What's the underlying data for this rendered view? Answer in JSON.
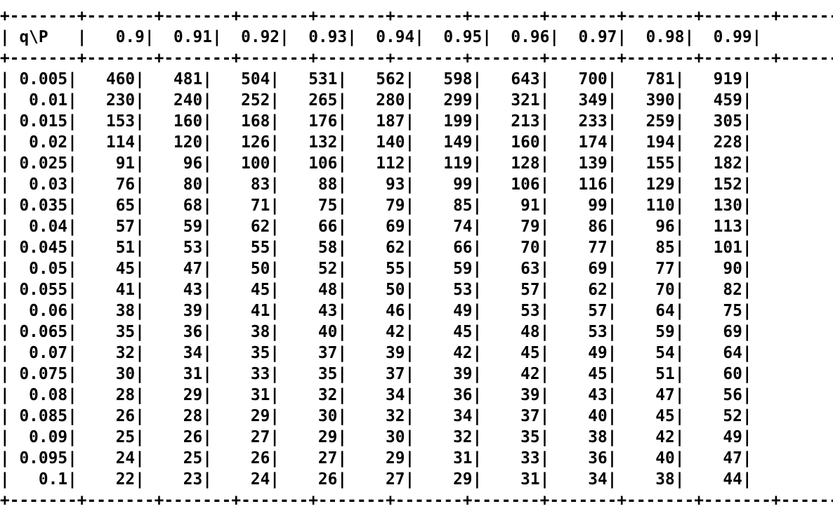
{
  "table": {
    "corner_label": "q\\P",
    "columns": [
      "0.9",
      "0.91",
      "0.92",
      "0.93",
      "0.94",
      "0.95",
      "0.96",
      "0.97",
      "0.98",
      "0.99"
    ],
    "rows": [
      {
        "q": "0.005",
        "values": [
          "460",
          "481",
          "504",
          "531",
          "562",
          "598",
          "643",
          "700",
          "781",
          "919"
        ]
      },
      {
        "q": "0.01",
        "values": [
          "230",
          "240",
          "252",
          "265",
          "280",
          "299",
          "321",
          "349",
          "390",
          "459"
        ]
      },
      {
        "q": "0.015",
        "values": [
          "153",
          "160",
          "168",
          "176",
          "187",
          "199",
          "213",
          "233",
          "259",
          "305"
        ]
      },
      {
        "q": "0.02",
        "values": [
          "114",
          "120",
          "126",
          "132",
          "140",
          "149",
          "160",
          "174",
          "194",
          "228"
        ]
      },
      {
        "q": "0.025",
        "values": [
          "91",
          "96",
          "100",
          "106",
          "112",
          "119",
          "128",
          "139",
          "155",
          "182"
        ]
      },
      {
        "q": "0.03",
        "values": [
          "76",
          "80",
          "83",
          "88",
          "93",
          "99",
          "106",
          "116",
          "129",
          "152"
        ]
      },
      {
        "q": "0.035",
        "values": [
          "65",
          "68",
          "71",
          "75",
          "79",
          "85",
          "91",
          "99",
          "110",
          "130"
        ]
      },
      {
        "q": "0.04",
        "values": [
          "57",
          "59",
          "62",
          "66",
          "69",
          "74",
          "79",
          "86",
          "96",
          "113"
        ]
      },
      {
        "q": "0.045",
        "values": [
          "51",
          "53",
          "55",
          "58",
          "62",
          "66",
          "70",
          "77",
          "85",
          "101"
        ]
      },
      {
        "q": "0.05",
        "values": [
          "45",
          "47",
          "50",
          "52",
          "55",
          "59",
          "63",
          "69",
          "77",
          "90"
        ]
      },
      {
        "q": "0.055",
        "values": [
          "41",
          "43",
          "45",
          "48",
          "50",
          "53",
          "57",
          "62",
          "70",
          "82"
        ]
      },
      {
        "q": "0.06",
        "values": [
          "38",
          "39",
          "41",
          "43",
          "46",
          "49",
          "53",
          "57",
          "64",
          "75"
        ]
      },
      {
        "q": "0.065",
        "values": [
          "35",
          "36",
          "38",
          "40",
          "42",
          "45",
          "48",
          "53",
          "59",
          "69"
        ]
      },
      {
        "q": "0.07",
        "values": [
          "32",
          "34",
          "35",
          "37",
          "39",
          "42",
          "45",
          "49",
          "54",
          "64"
        ]
      },
      {
        "q": "0.075",
        "values": [
          "30",
          "31",
          "33",
          "35",
          "37",
          "39",
          "42",
          "45",
          "51",
          "60"
        ]
      },
      {
        "q": "0.08",
        "values": [
          "28",
          "29",
          "31",
          "32",
          "34",
          "36",
          "39",
          "43",
          "47",
          "56"
        ]
      },
      {
        "q": "0.085",
        "values": [
          "26",
          "28",
          "29",
          "30",
          "32",
          "34",
          "37",
          "40",
          "45",
          "52"
        ]
      },
      {
        "q": "0.09",
        "values": [
          "25",
          "26",
          "27",
          "29",
          "30",
          "32",
          "35",
          "38",
          "42",
          "49"
        ]
      },
      {
        "q": "0.095",
        "values": [
          "24",
          "25",
          "26",
          "27",
          "29",
          "31",
          "33",
          "36",
          "40",
          "47"
        ]
      },
      {
        "q": "0.1",
        "values": [
          "22",
          "23",
          "24",
          "26",
          "27",
          "29",
          "31",
          "34",
          "38",
          "44"
        ]
      }
    ]
  }
}
